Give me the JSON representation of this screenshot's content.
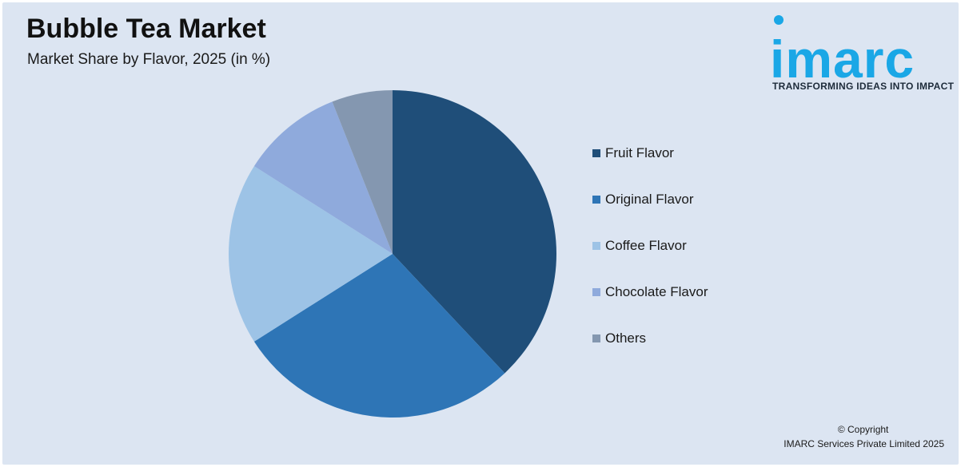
{
  "header": {
    "title": "Bubble Tea Market",
    "subtitle": "Market Share by Flavor, 2025 (in %)"
  },
  "logo": {
    "word": "imarc",
    "tagline": "TRANSFORMING IDEAS INTO IMPACT",
    "color": "#1aa7e6"
  },
  "chart_data": {
    "type": "pie",
    "title": "Bubble Tea Market",
    "subtitle": "Market Share by Flavor, 2025 (in %)",
    "categories": [
      "Fruit Flavor",
      "Original Flavor",
      "Coffee Flavor",
      "Chocolate Flavor",
      "Others"
    ],
    "values": [
      38,
      28,
      18,
      10,
      6
    ],
    "colors": [
      "#1f4e79",
      "#2e75b6",
      "#9dc3e6",
      "#8faadc",
      "#8497b0"
    ],
    "start_angle": "12 o'clock",
    "direction": "clockwise",
    "legend_position": "right",
    "data_labels": false
  },
  "footer": {
    "copyright_line1": "© Copyright",
    "copyright_line2": "IMARC Services Private Limited 2025"
  }
}
